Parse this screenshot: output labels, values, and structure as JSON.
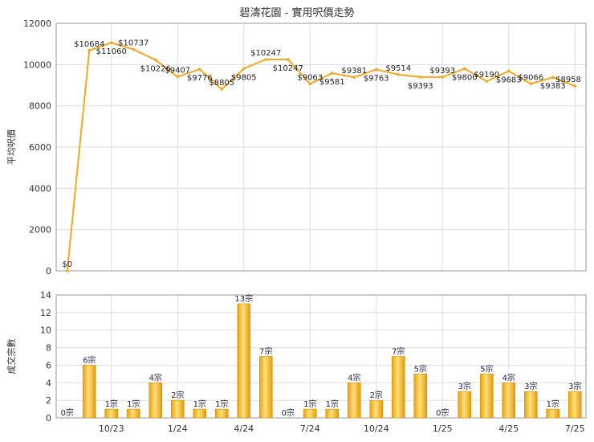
{
  "chart_data": [
    {
      "type": "line",
      "title": "碧濤花園 - 實用呎價走勢",
      "ylabel": "平均呎價",
      "ylim": [
        0,
        12000
      ],
      "yticks": [
        0,
        2000,
        4000,
        6000,
        8000,
        10000,
        12000
      ],
      "color": "#f5a623",
      "values": [
        0,
        10684,
        11060,
        10737,
        10226,
        9407,
        9776,
        8805,
        9805,
        10247,
        10247,
        9063,
        9581,
        9381,
        9763,
        9514,
        9393,
        9393,
        9800,
        9190,
        9683,
        9066,
        9383,
        8958
      ],
      "labels": [
        "$0",
        "$10684",
        "$11060",
        "$10737",
        "$10226",
        "$9407",
        "$9776",
        "$8805",
        "$9805",
        "$10247",
        "$10247",
        "$9063",
        "$9581",
        "$9381",
        "$9763",
        "$9514",
        "$9393",
        "$9393",
        "$9800",
        "$9190",
        "$9683",
        "$9066",
        "$9383",
        "$8958"
      ]
    },
    {
      "type": "bar",
      "ylabel": "成交宗數",
      "ylim": [
        0,
        14
      ],
      "yticks": [
        0,
        2,
        4,
        6,
        8,
        10,
        12,
        14
      ],
      "x_tick_labels": [
        "10/23",
        "1/24",
        "4/24",
        "7/24",
        "10/24",
        "1/25",
        "4/25",
        "7/25"
      ],
      "values": [
        0,
        6,
        1,
        1,
        4,
        2,
        1,
        1,
        13,
        7,
        0,
        1,
        1,
        4,
        2,
        7,
        5,
        0,
        3,
        5,
        4,
        3,
        1,
        3
      ],
      "labels": [
        "0宗",
        "6宗",
        "1宗",
        "1宗",
        "4宗",
        "2宗",
        "1宗",
        "1宗",
        "13宗",
        "7宗",
        "0宗",
        "1宗",
        "1宗",
        "4宗",
        "2宗",
        "7宗",
        "5宗",
        "0宗",
        "3宗",
        "5宗",
        "4宗",
        "3宗",
        "1宗",
        "3宗"
      ]
    }
  ]
}
